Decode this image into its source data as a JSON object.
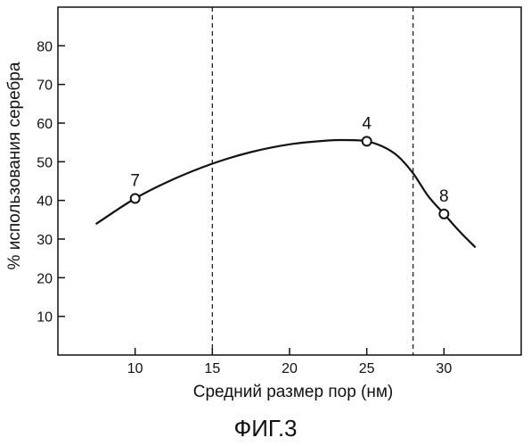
{
  "chart_data": {
    "type": "line",
    "title": "",
    "xlabel": "Средний размер пор (нм)",
    "ylabel": "% использования серебра",
    "xlim": [
      5,
      35
    ],
    "ylim": [
      0,
      90
    ],
    "x_ticks": [
      10,
      15,
      20,
      25,
      30
    ],
    "y_ticks": [
      10,
      20,
      30,
      40,
      50,
      60,
      70,
      80
    ],
    "grid": false,
    "legend": "none",
    "series": [
      {
        "curve_x": [
          7.5,
          10,
          12.5,
          15,
          17.5,
          20,
          22.5,
          24,
          25,
          26,
          27,
          28,
          29,
          30,
          31,
          32
        ],
        "curve_y": [
          34,
          40.5,
          45.5,
          49.5,
          52.5,
          54.5,
          55.5,
          55.6,
          55.3,
          54,
          51.5,
          47,
          41,
          36.5,
          32,
          28
        ]
      }
    ],
    "marked_points": [
      {
        "label": "7",
        "x": 10,
        "y": 40.5
      },
      {
        "label": "4",
        "x": 25,
        "y": 55.3
      },
      {
        "label": "8",
        "x": 30,
        "y": 36.5
      }
    ],
    "reference_lines_x": [
      15,
      28
    ],
    "figure_caption": "ФИГ.3"
  }
}
